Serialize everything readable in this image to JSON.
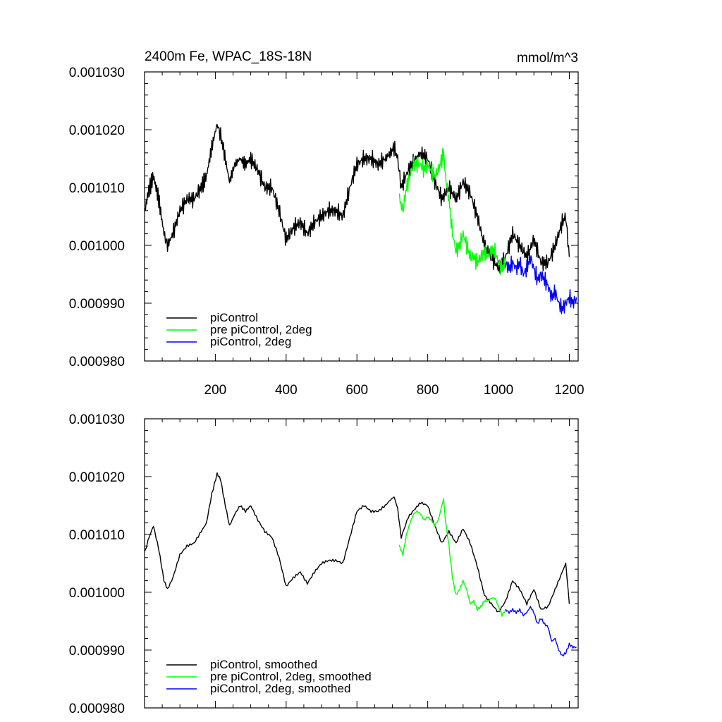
{
  "chart_data": [
    {
      "type": "line",
      "title": "2400m Fe, WPAC_18S-18N",
      "units": "mmol/m^3",
      "xlabel": "",
      "ylabel": "",
      "xlim": [
        0,
        1225
      ],
      "ylim": [
        0.00098,
        0.00103
      ],
      "x_ticks": [
        200,
        400,
        600,
        800,
        1000,
        1200
      ],
      "x_tick_labels": [
        "200",
        "400",
        "600",
        "800",
        "1000",
        "1200"
      ],
      "y_ticks": [
        0.00098,
        0.00099,
        0.001,
        0.00101,
        0.00102,
        0.00103
      ],
      "y_tick_labels": [
        "0.000980",
        "0.000990",
        "0.001000",
        "0.001010",
        "0.001020",
        "0.001030"
      ],
      "grid": false,
      "legend_position": "bottom-left",
      "series": [
        {
          "name": "piControl",
          "color": "#000000",
          "x": [
            1,
            10,
            25,
            40,
            55,
            65,
            80,
            100,
            120,
            140,
            160,
            175,
            190,
            205,
            215,
            225,
            240,
            255,
            270,
            285,
            300,
            320,
            340,
            360,
            380,
            400,
            420,
            440,
            460,
            480,
            500,
            520,
            540,
            560,
            580,
            600,
            620,
            640,
            660,
            680,
            695,
            705,
            715,
            725,
            745,
            765,
            780,
            800,
            820,
            840,
            860,
            880,
            900,
            920,
            940,
            960,
            980,
            1000,
            1020,
            1040,
            1060,
            1080,
            1100,
            1120,
            1140,
            1160,
            1180,
            1190,
            1200
          ],
          "y": [
            0.001006,
            0.001009,
            0.001012,
            0.001008,
            0.001002,
            0.001,
            0.001002,
            0.001006,
            0.001008,
            0.001008,
            0.00101,
            0.001012,
            0.001017,
            0.001021,
            0.001019,
            0.001016,
            0.001011,
            0.001014,
            0.001015,
            0.001014,
            0.001015,
            0.001013,
            0.00101,
            0.00101,
            0.001006,
            0.001001,
            0.001003,
            0.001004,
            0.001002,
            0.001004,
            0.001005,
            0.001006,
            0.001006,
            0.001005,
            0.00101,
            0.001014,
            0.001015,
            0.001015,
            0.001014,
            0.001015,
            0.001016,
            0.001017,
            0.001015,
            0.00101,
            0.001013,
            0.001015,
            0.001016,
            0.001015,
            0.001011,
            0.001008,
            0.00101,
            0.001008,
            0.001011,
            0.001009,
            0.001005,
            0.001,
            0.000998,
            0.000996,
            0.000998,
            0.001002,
            0.001,
            0.000998,
            0.001001,
            0.000997,
            0.000997,
            0.001,
            0.001004,
            0.001005,
            0.000998
          ]
        },
        {
          "name": "pre piControl, 2deg",
          "color": "#00ff00",
          "x": [
            720,
            730,
            740,
            750,
            760,
            770,
            780,
            790,
            800,
            810,
            820,
            830,
            840,
            845,
            850,
            860,
            870,
            880,
            890,
            900,
            910,
            920,
            930,
            940,
            950,
            960,
            970,
            980,
            990,
            1000,
            1010,
            1020
          ],
          "y": [
            0.001008,
            0.001006,
            0.00101,
            0.001012,
            0.001014,
            0.001014,
            0.001014,
            0.001013,
            0.001014,
            0.001013,
            0.001012,
            0.001013,
            0.001015,
            0.001016,
            0.001012,
            0.001008,
            0.001002,
            0.000999,
            0.001,
            0.001002,
            0.001,
            0.000998,
            0.000998,
            0.000997,
            0.000998,
            0.000999,
            0.000998,
            0.000999,
            0.000999,
            0.000997,
            0.000996,
            0.000997
          ]
        },
        {
          "name": "piControl, 2deg",
          "color": "#0000ff",
          "x": [
            1020,
            1030,
            1040,
            1050,
            1060,
            1070,
            1080,
            1090,
            1100,
            1110,
            1120,
            1130,
            1140,
            1150,
            1160,
            1170,
            1180,
            1190,
            1200,
            1210,
            1220
          ],
          "y": [
            0.000997,
            0.000996,
            0.000997,
            0.000996,
            0.000997,
            0.000995,
            0.000996,
            0.000998,
            0.000996,
            0.000994,
            0.000995,
            0.000994,
            0.000993,
            0.000991,
            0.000992,
            0.00099,
            0.000989,
            0.00099,
            0.000991,
            0.00099,
            0.000991
          ]
        }
      ]
    },
    {
      "type": "line",
      "title": "",
      "units": "",
      "xlabel": "",
      "ylabel": "",
      "xlim": [
        0,
        1225
      ],
      "ylim": [
        0.00098,
        0.00103
      ],
      "x_ticks": [
        200,
        400,
        600,
        800,
        1000,
        1200
      ],
      "x_tick_labels": [],
      "y_ticks": [
        0.00098,
        0.00099,
        0.001,
        0.00101,
        0.00102,
        0.00103
      ],
      "y_tick_labels": [
        "0.000980",
        "0.000990",
        "0.001000",
        "0.001010",
        "0.001020",
        "0.001030"
      ],
      "grid": false,
      "legend_position": "bottom-left",
      "series": [
        {
          "name": "piControl, smoothed",
          "color": "#000000",
          "x": [
            1,
            10,
            25,
            40,
            55,
            65,
            80,
            100,
            120,
            140,
            160,
            175,
            190,
            205,
            215,
            225,
            240,
            255,
            270,
            285,
            300,
            320,
            340,
            360,
            380,
            400,
            420,
            440,
            460,
            480,
            500,
            520,
            540,
            560,
            580,
            600,
            620,
            640,
            660,
            680,
            695,
            705,
            715,
            725,
            745,
            765,
            780,
            800,
            820,
            840,
            860,
            880,
            900,
            920,
            940,
            960,
            980,
            1000,
            1020,
            1040,
            1060,
            1080,
            1100,
            1120,
            1140,
            1160,
            1180,
            1190,
            1200
          ],
          "y": [
            0.001007,
            0.001009,
            0.0010115,
            0.0010075,
            0.001002,
            0.0010005,
            0.0010025,
            0.0010065,
            0.001008,
            0.0010085,
            0.0010105,
            0.001012,
            0.001017,
            0.0010205,
            0.0010195,
            0.001016,
            0.0010115,
            0.0010135,
            0.001015,
            0.001014,
            0.001015,
            0.0010125,
            0.0010105,
            0.0010095,
            0.001006,
            0.001001,
            0.0010025,
            0.0010035,
            0.0010015,
            0.0010035,
            0.001005,
            0.0010055,
            0.0010055,
            0.001005,
            0.0010095,
            0.001014,
            0.001015,
            0.001014,
            0.001014,
            0.001015,
            0.001016,
            0.0010165,
            0.0010145,
            0.0010095,
            0.001013,
            0.0010145,
            0.0010155,
            0.001015,
            0.0010115,
            0.0010085,
            0.0010105,
            0.0010085,
            0.001011,
            0.0010085,
            0.0010045,
            0.0009995,
            0.000998,
            0.0009965,
            0.0009985,
            0.001002,
            0.0010005,
            0.000998,
            0.0010005,
            0.000997,
            0.0009975,
            0.0010005,
            0.0010035,
            0.001005,
            0.000998
          ]
        },
        {
          "name": "pre piControl, 2deg, smoothed",
          "color": "#00ff00",
          "x": [
            720,
            730,
            740,
            750,
            760,
            770,
            780,
            790,
            800,
            810,
            820,
            830,
            840,
            845,
            850,
            860,
            870,
            880,
            890,
            900,
            910,
            920,
            930,
            940,
            950,
            960,
            970,
            980,
            990,
            1000,
            1010,
            1020
          ],
          "y": [
            0.001008,
            0.0010065,
            0.00101,
            0.001012,
            0.0010135,
            0.001014,
            0.0010135,
            0.0010125,
            0.001013,
            0.0010125,
            0.0010115,
            0.0010125,
            0.001015,
            0.001016,
            0.0010125,
            0.001008,
            0.0010025,
            0.0009995,
            0.0010005,
            0.001002,
            0.0010005,
            0.000998,
            0.0009985,
            0.000997,
            0.0009975,
            0.0009985,
            0.0009985,
            0.000999,
            0.000999,
            0.0009975,
            0.000996,
            0.000997
          ]
        },
        {
          "name": "piControl, 2deg, smoothed",
          "color": "#0000ff",
          "x": [
            1020,
            1030,
            1040,
            1050,
            1060,
            1070,
            1080,
            1090,
            1100,
            1110,
            1120,
            1130,
            1140,
            1150,
            1160,
            1170,
            1180,
            1190,
            1200,
            1210,
            1220
          ],
          "y": [
            0.000997,
            0.0009965,
            0.000997,
            0.0009965,
            0.000997,
            0.000996,
            0.0009965,
            0.0009975,
            0.0009965,
            0.0009945,
            0.0009955,
            0.0009945,
            0.000994,
            0.0009915,
            0.000992,
            0.00099,
            0.000989,
            0.0009895,
            0.000991,
            0.0009905,
            0.0009905
          ]
        }
      ]
    }
  ]
}
